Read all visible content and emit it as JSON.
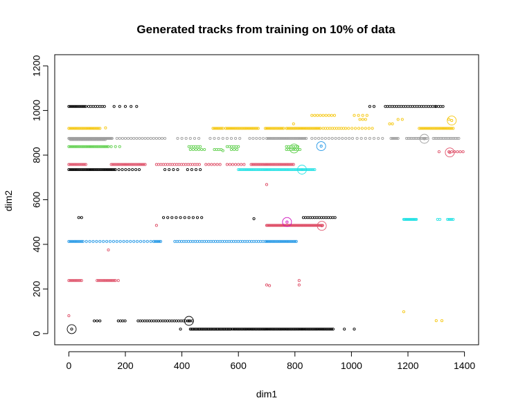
{
  "chart_data": {
    "type": "scatter",
    "title": "Generated tracks from training on 10% of data",
    "xlabel": "dim1",
    "ylabel": "dim2",
    "xlim": [
      -50,
      1450
    ],
    "ylim": [
      -50,
      1250
    ],
    "xticks": [
      0,
      200,
      400,
      600,
      800,
      1000,
      1200,
      1400
    ],
    "yticks": [
      0,
      200,
      400,
      600,
      800,
      1000,
      1200
    ],
    "grid": false,
    "legend": "none",
    "series": [
      {
        "color": "#000000",
        "segments": [
          {
            "y": 1018,
            "x_from": 0,
            "x_to": 60,
            "step": 5
          },
          {
            "y": 1018,
            "x_from": 70,
            "x_to": 130,
            "step": 8
          },
          {
            "y": 1018,
            "x_from": 160,
            "x_to": 255,
            "step": 20
          },
          {
            "y": 1018,
            "x_from": 1065,
            "x_to": 1080,
            "step": 15
          },
          {
            "y": 1018,
            "x_from": 1120,
            "x_to": 1300,
            "step": 8
          },
          {
            "y": 1018,
            "x_from": 1300,
            "x_to": 1325,
            "step": 8
          },
          {
            "y": 735,
            "x_from": 0,
            "x_to": 160,
            "step": 5
          },
          {
            "y": 735,
            "x_from": 165,
            "x_to": 260,
            "step": 12
          },
          {
            "y": 735,
            "x_from": 340,
            "x_to": 390,
            "step": 15
          },
          {
            "y": 735,
            "x_from": 420,
            "x_to": 465,
            "step": 15
          },
          {
            "y": 520,
            "x_from": 35,
            "x_to": 45,
            "step": 10
          },
          {
            "y": 520,
            "x_from": 350,
            "x_to": 470,
            "step": 15
          },
          {
            "y": 520,
            "x_from": 830,
            "x_to": 945,
            "step": 8
          },
          {
            "y": 57,
            "x_from": 90,
            "x_to": 115,
            "step": 10
          },
          {
            "y": 57,
            "x_from": 175,
            "x_to": 205,
            "step": 8
          },
          {
            "y": 57,
            "x_from": 245,
            "x_to": 440,
            "step": 8
          },
          {
            "y": 20,
            "x_from": 430,
            "x_to": 575,
            "step": 4
          },
          {
            "y": 20,
            "x_from": 580,
            "x_to": 935,
            "step": 5
          }
        ],
        "points": [
          [
            335,
            520
          ],
          [
            655,
            515
          ],
          [
            975,
            20
          ],
          [
            1010,
            20
          ],
          [
            395,
            20
          ]
        ],
        "markers": [
          [
            10,
            20
          ],
          [
            425,
            57
          ]
        ]
      },
      {
        "color": "#DF536B",
        "segments": [
          {
            "y": 758,
            "x_from": 0,
            "x_to": 60,
            "step": 5
          },
          {
            "y": 758,
            "x_from": 150,
            "x_to": 270,
            "step": 5
          },
          {
            "y": 758,
            "x_from": 310,
            "x_to": 465,
            "step": 8
          },
          {
            "y": 758,
            "x_from": 485,
            "x_to": 540,
            "step": 10
          },
          {
            "y": 758,
            "x_from": 560,
            "x_to": 620,
            "step": 10
          },
          {
            "y": 758,
            "x_from": 645,
            "x_to": 745,
            "step": 5
          },
          {
            "y": 758,
            "x_from": 750,
            "x_to": 795,
            "step": 5
          },
          {
            "y": 485,
            "x_from": 700,
            "x_to": 900,
            "step": 3
          },
          {
            "y": 238,
            "x_from": 0,
            "x_to": 45,
            "step": 5
          },
          {
            "y": 238,
            "x_from": 100,
            "x_to": 165,
            "step": 5
          },
          {
            "y": 815,
            "x_from": 1345,
            "x_to": 1395,
            "step": 10
          }
        ],
        "points": [
          [
            0,
            80
          ],
          [
            140,
            375
          ],
          [
            310,
            485
          ],
          [
            700,
            668
          ],
          [
            700,
            218
          ],
          [
            710,
            215
          ],
          [
            815,
            238
          ],
          [
            815,
            218
          ],
          [
            175,
            238
          ],
          [
            1310,
            815
          ]
        ],
        "markers": [
          [
            895,
            483
          ],
          [
            1348,
            812
          ]
        ]
      },
      {
        "color": "#61D04F",
        "segments": [
          {
            "y": 838,
            "x_from": 0,
            "x_to": 140,
            "step": 5
          },
          {
            "y": 838,
            "x_from": 150,
            "x_to": 180,
            "step": 15
          },
          {
            "y": 838,
            "x_from": 425,
            "x_to": 470,
            "step": 8
          },
          {
            "y": 838,
            "x_from": 560,
            "x_to": 600,
            "step": 8
          },
          {
            "y": 825,
            "x_from": 430,
            "x_to": 480,
            "step": 10
          },
          {
            "y": 825,
            "x_from": 515,
            "x_to": 545,
            "step": 8
          },
          {
            "y": 825,
            "x_from": 575,
            "x_to": 600,
            "step": 10
          },
          {
            "y": 838,
            "x_from": 770,
            "x_to": 810,
            "step": 8
          },
          {
            "y": 825,
            "x_from": 770,
            "x_to": 820,
            "step": 8
          }
        ],
        "points": [
          [
            545,
            820
          ]
        ],
        "markers": [
          [
            797,
            830
          ]
        ]
      },
      {
        "color": "#2297E6",
        "segments": [
          {
            "y": 413,
            "x_from": 0,
            "x_to": 45,
            "step": 5
          },
          {
            "y": 413,
            "x_from": 50,
            "x_to": 300,
            "step": 12
          },
          {
            "y": 413,
            "x_from": 300,
            "x_to": 325,
            "step": 5
          },
          {
            "y": 413,
            "x_from": 375,
            "x_to": 700,
            "step": 8
          },
          {
            "y": 413,
            "x_from": 700,
            "x_to": 805,
            "step": 5
          }
        ],
        "points": [],
        "markers": [
          [
            893,
            840
          ]
        ]
      },
      {
        "color": "#28E2E5",
        "segments": [
          {
            "y": 735,
            "x_from": 600,
            "x_to": 870,
            "step": 5
          },
          {
            "y": 512,
            "x_from": 1185,
            "x_to": 1230,
            "step": 3
          },
          {
            "y": 512,
            "x_from": 1305,
            "x_to": 1320,
            "step": 8
          },
          {
            "y": 512,
            "x_from": 1340,
            "x_to": 1360,
            "step": 5
          }
        ],
        "points": [],
        "markers": [
          [
            825,
            735
          ]
        ]
      },
      {
        "color": "#CD0BBC",
        "segments": [],
        "points": [],
        "markers": [
          [
            772,
            500
          ]
        ]
      },
      {
        "color": "#F5C710",
        "segments": [
          {
            "y": 920,
            "x_from": 0,
            "x_to": 110,
            "step": 5
          },
          {
            "y": 920,
            "x_from": 510,
            "x_to": 545,
            "step": 5
          },
          {
            "y": 920,
            "x_from": 555,
            "x_to": 670,
            "step": 5
          },
          {
            "y": 920,
            "x_from": 695,
            "x_to": 760,
            "step": 5
          },
          {
            "y": 920,
            "x_from": 770,
            "x_to": 890,
            "step": 5
          },
          {
            "y": 920,
            "x_from": 900,
            "x_to": 980,
            "step": 8
          },
          {
            "y": 920,
            "x_from": 990,
            "x_to": 1080,
            "step": 12
          },
          {
            "y": 920,
            "x_from": 1240,
            "x_to": 1360,
            "step": 5
          },
          {
            "y": 978,
            "x_from": 860,
            "x_to": 940,
            "step": 10
          },
          {
            "y": 978,
            "x_from": 1010,
            "x_to": 1060,
            "step": 15
          },
          {
            "y": 960,
            "x_from": 1030,
            "x_to": 1050,
            "step": 10
          },
          {
            "y": 960,
            "x_from": 1165,
            "x_to": 1180,
            "step": 15
          },
          {
            "y": 940,
            "x_from": 1135,
            "x_to": 1150,
            "step": 10
          }
        ],
        "points": [
          [
            130,
            922
          ],
          [
            795,
            940
          ],
          [
            1185,
            98
          ],
          [
            1300,
            58
          ],
          [
            1320,
            58
          ],
          [
            1345,
            960
          ]
        ],
        "markers": [
          [
            1355,
            955
          ]
        ]
      },
      {
        "color": "#9E9E9E",
        "segments": [
          {
            "y": 875,
            "x_from": 0,
            "x_to": 155,
            "step": 3
          },
          {
            "y": 875,
            "x_from": 170,
            "x_to": 340,
            "step": 10
          },
          {
            "y": 875,
            "x_from": 385,
            "x_to": 470,
            "step": 15
          },
          {
            "y": 875,
            "x_from": 500,
            "x_to": 610,
            "step": 15
          },
          {
            "y": 875,
            "x_from": 640,
            "x_to": 695,
            "step": 12
          },
          {
            "y": 875,
            "x_from": 700,
            "x_to": 840,
            "step": 5
          },
          {
            "y": 875,
            "x_from": 860,
            "x_to": 1010,
            "step": 12
          },
          {
            "y": 875,
            "x_from": 1020,
            "x_to": 1110,
            "step": 15
          },
          {
            "y": 875,
            "x_from": 1140,
            "x_to": 1165,
            "step": 5
          },
          {
            "y": 875,
            "x_from": 1195,
            "x_to": 1270,
            "step": 6
          },
          {
            "y": 875,
            "x_from": 1290,
            "x_to": 1380,
            "step": 6
          },
          {
            "y": 870,
            "x_from": 5,
            "x_to": 130,
            "step": 4
          }
        ],
        "points": [],
        "markers": [
          [
            1258,
            873
          ]
        ]
      }
    ]
  }
}
